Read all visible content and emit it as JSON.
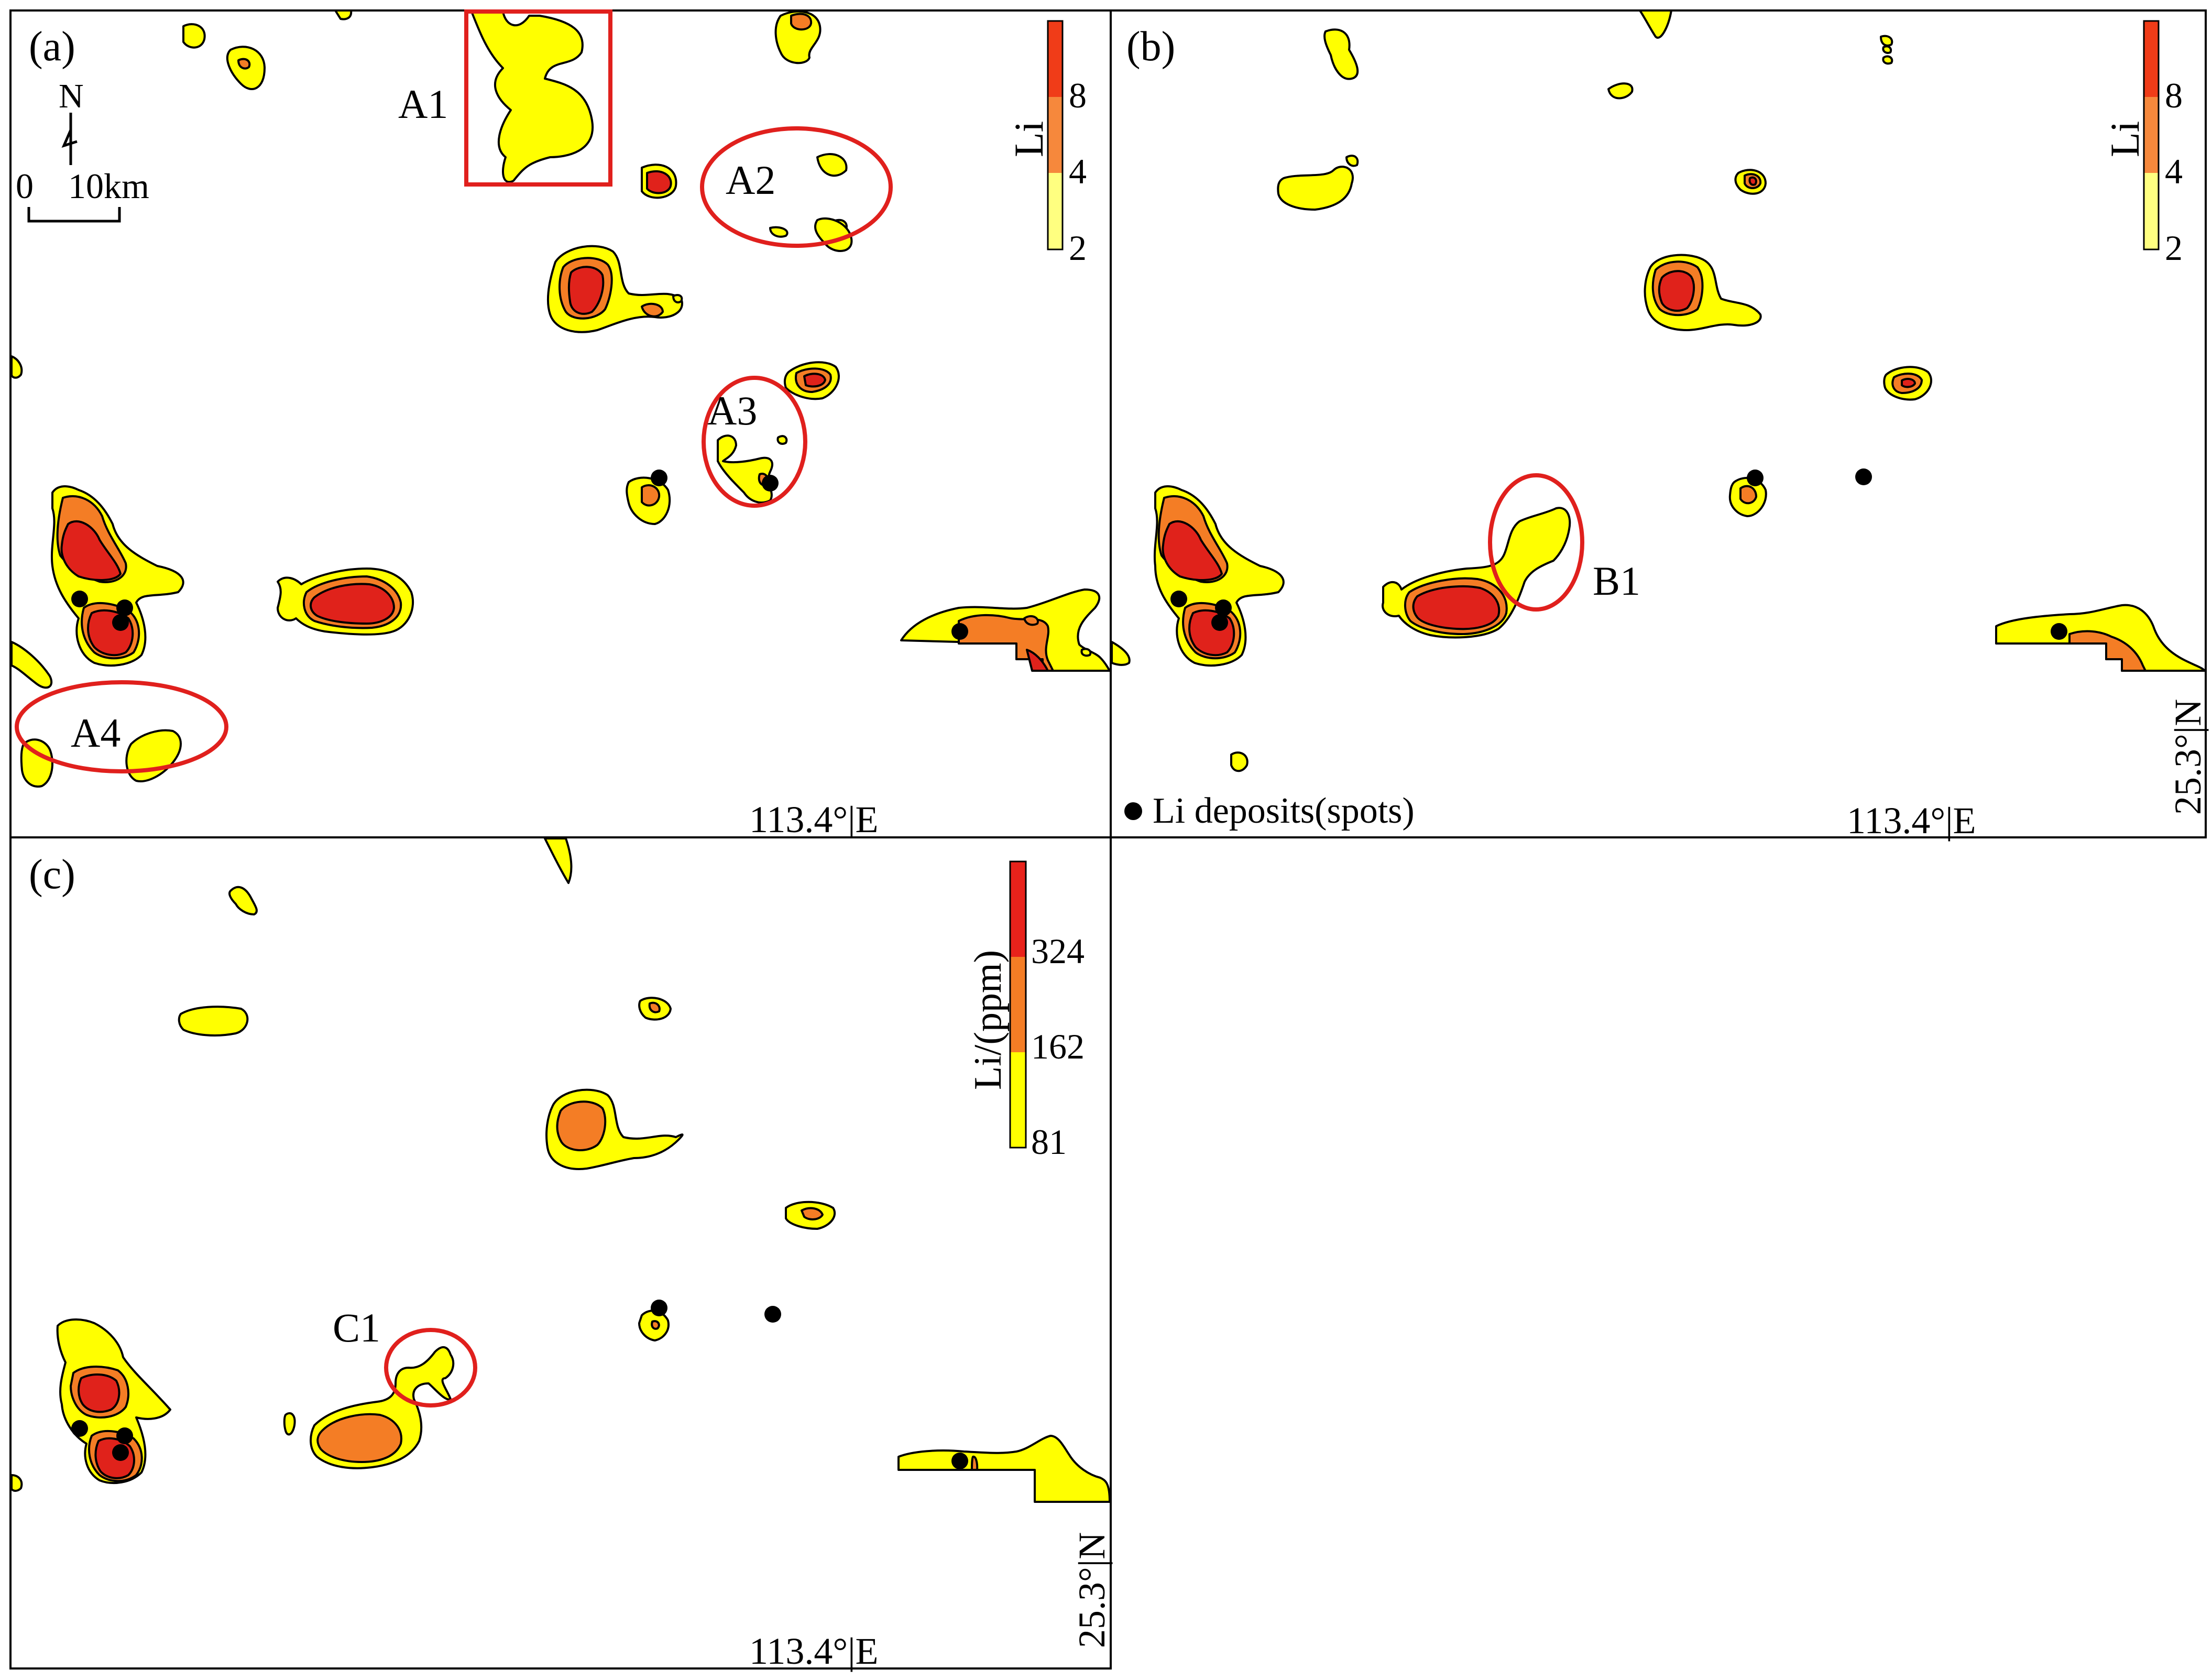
{
  "panels": {
    "a": {
      "label": "(a)",
      "legend": {
        "title": "Li",
        "ticks": [
          "8",
          "4",
          "2"
        ]
      },
      "north": "N",
      "scale_zero": "0",
      "scale_len": "10km",
      "lon_label": "113.4°|E",
      "anomalies": [
        "A1",
        "A2",
        "A3",
        "A4"
      ]
    },
    "b": {
      "label": "(b)",
      "legend": {
        "title": "Li",
        "ticks": [
          "8",
          "4",
          "2"
        ]
      },
      "lon_label": "113.4°|E",
      "lat_label": "25.3°|N",
      "deposit_legend": "Li deposits(spots)",
      "anomalies": [
        "B1"
      ]
    },
    "c": {
      "label": "(c)",
      "legend": {
        "title": "Li/(ppm)",
        "ticks": [
          "324",
          "162",
          "81"
        ]
      },
      "lon_label": "113.4°|E",
      "lat_label": "25.3°|N",
      "anomalies": [
        "C1"
      ]
    }
  },
  "colors": {
    "low": "#ffff00",
    "low_legend": "#ffff80",
    "mid": "#f47d25",
    "mid_legend": "#f6883c",
    "high": "#e0221b",
    "high_legend": "#f03c18",
    "marker": "#e0201d"
  }
}
